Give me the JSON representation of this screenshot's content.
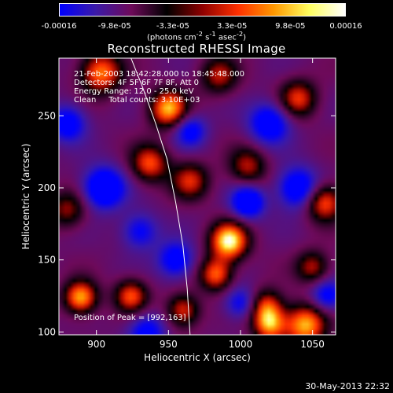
{
  "colorbar": {
    "tick_labels": [
      "-0.00016",
      "-9.8e-05",
      "-3.3e-05",
      "3.3e-05",
      "9.8e-05",
      "0.00016"
    ],
    "tick_values": [
      -0.00016,
      -9.8e-05,
      -3.3e-05,
      3.3e-05,
      9.8e-05,
      0.00016
    ],
    "units_parts": [
      "(photons cm",
      "-2",
      " s",
      "-1",
      " asec",
      "-2",
      ")"
    ],
    "gradient_colors": [
      "#0000ff",
      "#3b1aa8",
      "#6e0a5a",
      "#000000",
      "#8e0000",
      "#ff3000",
      "#ff9800",
      "#ffff60",
      "#ffffff"
    ]
  },
  "chart_data": {
    "type": "heatmap",
    "title": "Reconstructed RHESSI Image",
    "xlabel": "Heliocentric X (arcsec)",
    "ylabel": "Heliocentric Y (arcsec)",
    "xlim": [
      874,
      1066
    ],
    "ylim": [
      98,
      290
    ],
    "x_ticks": [
      900,
      950,
      1000,
      1050
    ],
    "y_ticks": [
      100,
      150,
      200,
      250
    ],
    "annotations": [
      "21-Feb-2003 18:42:28.000 to 18:45:48.000",
      "Detectors: 4F 5F 6F 7F 8F, Att 0",
      "Energy Range: 12.0 - 25.0 keV",
      "Clean     Total counts: 3.10E+03"
    ],
    "peak_label": "Position of Peak = [992,163]",
    "peak": {
      "x": 992,
      "y": 163
    },
    "limb_points": [
      [
        924,
        290
      ],
      [
        932,
        270
      ],
      [
        941,
        245
      ],
      [
        949,
        220
      ],
      [
        955,
        190
      ],
      [
        960,
        160
      ],
      [
        963,
        130
      ],
      [
        965,
        98
      ]
    ],
    "blobs": [
      {
        "x": 992,
        "y": 163,
        "r": 9,
        "amp": 1.0
      },
      {
        "x": 889,
        "y": 124,
        "r": 8,
        "amp": 0.85
      },
      {
        "x": 950,
        "y": 255,
        "r": 9,
        "amp": 0.85
      },
      {
        "x": 1045,
        "y": 105,
        "r": 10,
        "amp": 0.85
      },
      {
        "x": 1020,
        "y": 105,
        "r": 8,
        "amp": 0.75
      },
      {
        "x": 1018,
        "y": 118,
        "r": 8,
        "amp": 0.6
      },
      {
        "x": 983,
        "y": 140,
        "r": 8,
        "amp": 0.7
      },
      {
        "x": 903,
        "y": 280,
        "r": 10,
        "amp": 0.75
      },
      {
        "x": 937,
        "y": 217,
        "r": 9,
        "amp": 0.65
      },
      {
        "x": 924,
        "y": 125,
        "r": 8,
        "amp": 0.65
      },
      {
        "x": 1058,
        "y": 190,
        "r": 9,
        "amp": 0.7
      },
      {
        "x": 1040,
        "y": 262,
        "r": 9,
        "amp": 0.6
      },
      {
        "x": 965,
        "y": 205,
        "r": 9,
        "amp": 0.55
      },
      {
        "x": 1005,
        "y": 215,
        "r": 9,
        "amp": 0.5
      },
      {
        "x": 960,
        "y": 115,
        "r": 8,
        "amp": 0.6
      },
      {
        "x": 1050,
        "y": 145,
        "r": 8,
        "amp": 0.5
      },
      {
        "x": 880,
        "y": 185,
        "r": 9,
        "amp": 0.45
      },
      {
        "x": 985,
        "y": 278,
        "r": 9,
        "amp": 0.5
      },
      {
        "x": 1005,
        "y": 190,
        "r": 8,
        "amp": -0.7
      },
      {
        "x": 905,
        "y": 200,
        "r": 10,
        "amp": -0.75
      },
      {
        "x": 1040,
        "y": 200,
        "r": 10,
        "amp": -0.65
      },
      {
        "x": 1020,
        "y": 245,
        "r": 10,
        "amp": -0.6
      },
      {
        "x": 955,
        "y": 150,
        "r": 9,
        "amp": -0.55
      },
      {
        "x": 935,
        "y": 100,
        "r": 9,
        "amp": -0.5
      },
      {
        "x": 1060,
        "y": 125,
        "r": 8,
        "amp": -0.5
      },
      {
        "x": 880,
        "y": 245,
        "r": 9,
        "amp": -0.55
      },
      {
        "x": 965,
        "y": 240,
        "r": 8,
        "amp": -0.5
      },
      {
        "x": 1000,
        "y": 120,
        "r": 8,
        "amp": -0.45
      },
      {
        "x": 930,
        "y": 170,
        "r": 9,
        "amp": -0.45
      }
    ]
  },
  "footer_date": "30-May-2013 22:32"
}
